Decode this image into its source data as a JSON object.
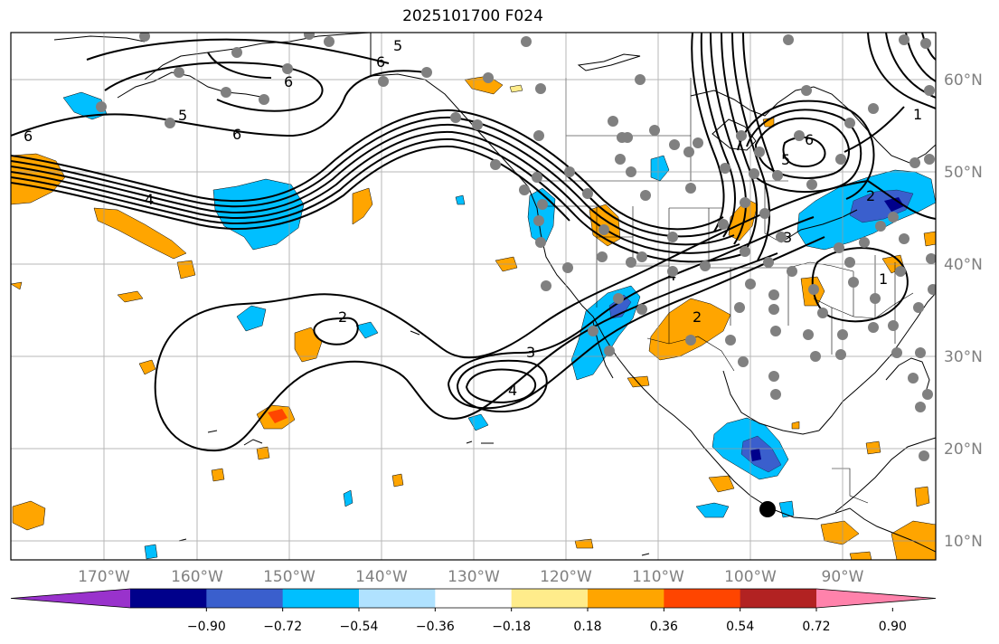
{
  "title": "2025101700 F024",
  "colors": {
    "frame": "#000000",
    "grid": "#999999",
    "land": "#000000",
    "station": "#808080",
    "contour": "#000000"
  },
  "longitude_labels": [
    "170°W",
    "160°W",
    "150°W",
    "140°W",
    "130°W",
    "120°W",
    "110°W",
    "100°W",
    "90°W"
  ],
  "latitude_labels": [
    "60°N",
    "50°N",
    "40°N",
    "30°N",
    "20°N",
    "10°N"
  ],
  "colorbar": {
    "tick_labels": [
      "−0.90",
      "−0.72",
      "−0.54",
      "−0.36",
      "−0.18",
      "0.18",
      "0.36",
      "0.54",
      "0.72",
      "0.90"
    ],
    "colors": [
      "#9932CC",
      "#00008B",
      "#3A5FCD",
      "#00BFFF",
      "#B0E2FF",
      "#FFFFFF",
      "#FFEC8B",
      "#FFA500",
      "#FF4500",
      "#B22222",
      "#FF82AB"
    ]
  },
  "contour_labels": [
    "5",
    "6",
    "6",
    "5",
    "6",
    "6",
    "4",
    "2",
    "3",
    "4",
    "2",
    "4",
    "3",
    "2",
    "1",
    "6",
    "5",
    "1"
  ]
}
